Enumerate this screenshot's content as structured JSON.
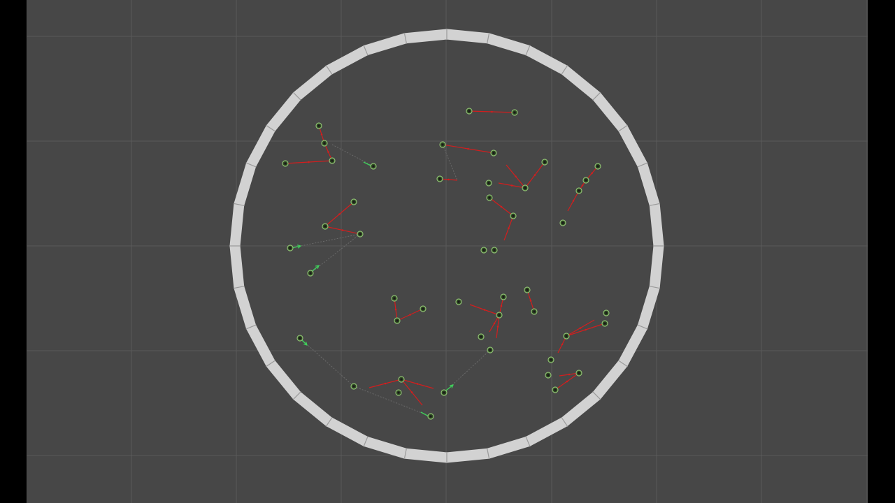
{
  "scene": {
    "background_color": "#474747",
    "letterbox_color": "#000000",
    "grid_color": "#5a5a5a",
    "arena_ring_color": "#d2d2d2",
    "sensor_ray_color": "#d21e1e",
    "agent_ring_color": "#8fbf73",
    "agent_body_color": "#2e4a22",
    "heading_arrow_color": "#3fd05a",
    "trail_color": "#6a6a6a",
    "agents": {
      "a01": {
        "state": "idle"
      },
      "a02": {
        "state": "sensing"
      },
      "a03": {
        "state": "sensing"
      },
      "a04": {
        "state": "moving"
      },
      "a05": {
        "state": "moving"
      },
      "a06": {
        "state": "sensing"
      },
      "a07": {
        "state": "sensing"
      },
      "a08": {
        "state": "sensing"
      }
    }
  }
}
